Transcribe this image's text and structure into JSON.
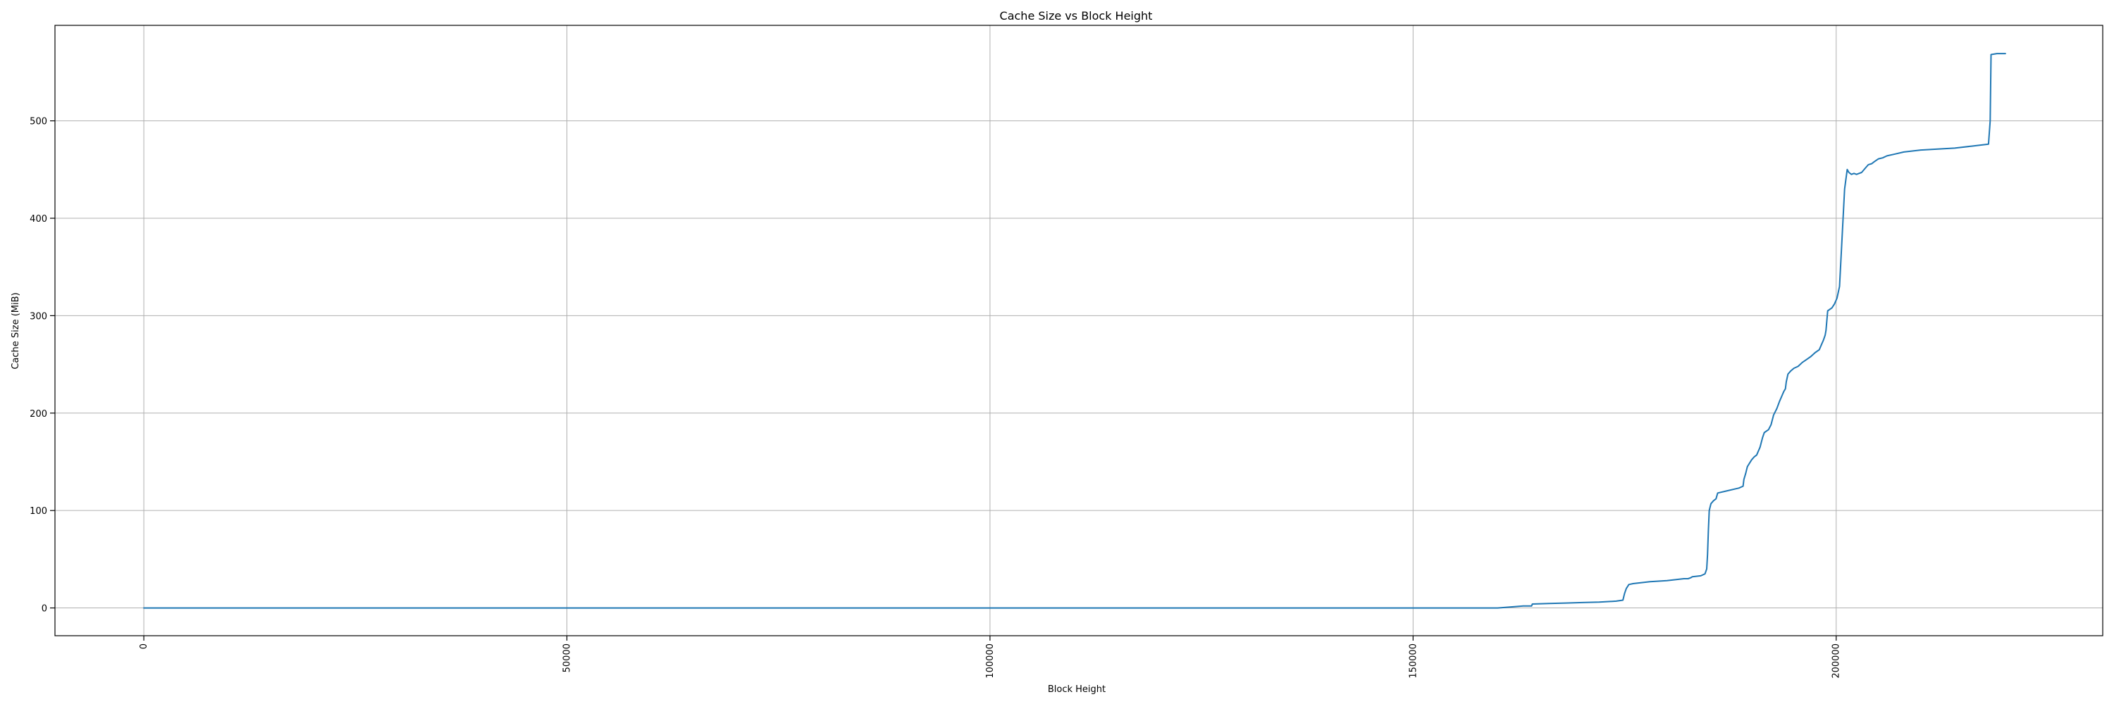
{
  "chart_data": {
    "type": "line",
    "title": "Cache Size vs Block Height",
    "xlabel": "Block Height",
    "ylabel": "Cache Size (MiB)",
    "xlim": [
      -10500,
      231500
    ],
    "ylim": [
      -28.5,
      598
    ],
    "xticks": [
      0,
      50000,
      100000,
      150000,
      200000
    ],
    "xtick_labels": [
      "0",
      "50000",
      "100000",
      "150000",
      "200000"
    ],
    "xtick_rotation": 90,
    "yticks": [
      0,
      100,
      200,
      300,
      400,
      500
    ],
    "ytick_labels": [
      "0",
      "100",
      "200",
      "300",
      "400",
      "500"
    ],
    "grid": true,
    "series": [
      {
        "color": "#1f77b4",
        "x": [
          0,
          150000,
          160000,
          163000,
          164000,
          164100,
          166000,
          168000,
          170000,
          172000,
          174000,
          174800,
          175000,
          175200,
          175500,
          176000,
          177000,
          178000,
          180000,
          182000,
          182500,
          182800,
          183000,
          184000,
          184500,
          184700,
          184800,
          184900,
          185000,
          185200,
          185500,
          185800,
          186000,
          187000,
          188000,
          188500,
          189000,
          189100,
          189300,
          189500,
          190000,
          190300,
          190600,
          191000,
          191300,
          191500,
          192000,
          192300,
          192600,
          193000,
          193300,
          193600,
          193800,
          194000,
          194100,
          194300,
          194600,
          195000,
          195500,
          196000,
          196500,
          197000,
          197500,
          198000,
          198500,
          198700,
          198800,
          199000,
          199500,
          199800,
          200100,
          200400,
          200700,
          201000,
          201300,
          201500,
          201800,
          202100,
          202400,
          202700,
          203000,
          203500,
          203800,
          204200,
          204500,
          205000,
          205500,
          206000,
          207000,
          208000,
          209000,
          210000,
          212000,
          214000,
          216000,
          218000,
          218200,
          218300,
          219000,
          220000
        ],
        "y": [
          0,
          0,
          0,
          2,
          2,
          4,
          4.5,
          5,
          5.5,
          6,
          7,
          8,
          15,
          20,
          24,
          25,
          26,
          27,
          28,
          30,
          30,
          31,
          32,
          33,
          35,
          40,
          55,
          80,
          100,
          107,
          110,
          112,
          118,
          120,
          122,
          123,
          125,
          132,
          138,
          145,
          152,
          155,
          157,
          165,
          175,
          180,
          183,
          188,
          198,
          205,
          212,
          218,
          222,
          225,
          232,
          240,
          243,
          246,
          248,
          252,
          255,
          258,
          262,
          265,
          275,
          280,
          285,
          305,
          308,
          312,
          318,
          330,
          380,
          430,
          450,
          447,
          445,
          446,
          445,
          446,
          447,
          452,
          455,
          456,
          458,
          461,
          462,
          464,
          466,
          468,
          469,
          470,
          471,
          472,
          474,
          476,
          500,
          568,
          569,
          569
        ]
      }
    ]
  }
}
